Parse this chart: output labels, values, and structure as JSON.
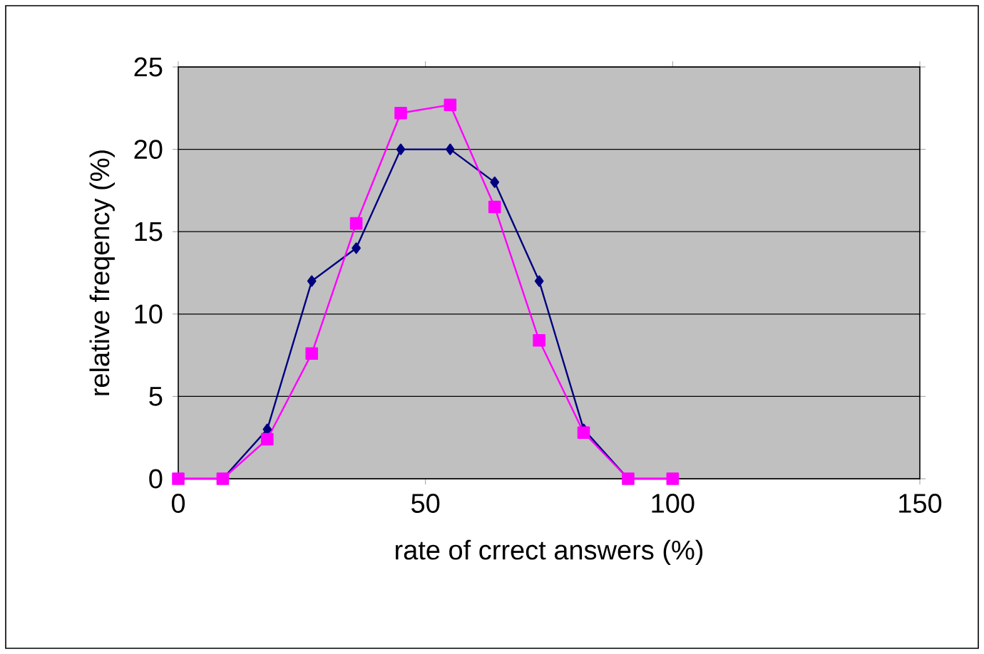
{
  "chart_data": {
    "type": "line",
    "xlabel": "rate of crrect answers (%)",
    "ylabel": "relative freqency (%)",
    "x": [
      0,
      9,
      18,
      27,
      36,
      45,
      55,
      64,
      73,
      82,
      91,
      100
    ],
    "series": [
      {
        "color": "#000080",
        "marker": "diamond",
        "values": [
          0,
          0,
          3,
          12,
          14,
          20,
          20,
          18,
          12,
          3,
          0,
          0
        ]
      },
      {
        "color": "#ff00ff",
        "marker": "square",
        "values": [
          0,
          0,
          2.4,
          7.6,
          15.5,
          22.2,
          22.7,
          16.5,
          8.4,
          2.8,
          0,
          0
        ]
      }
    ],
    "xlim": [
      0,
      150
    ],
    "xticks": [
      0,
      50,
      100,
      150
    ],
    "ylim": [
      0,
      25
    ],
    "yticks": [
      0,
      5,
      10,
      15,
      20,
      25
    ],
    "grid": "y"
  }
}
